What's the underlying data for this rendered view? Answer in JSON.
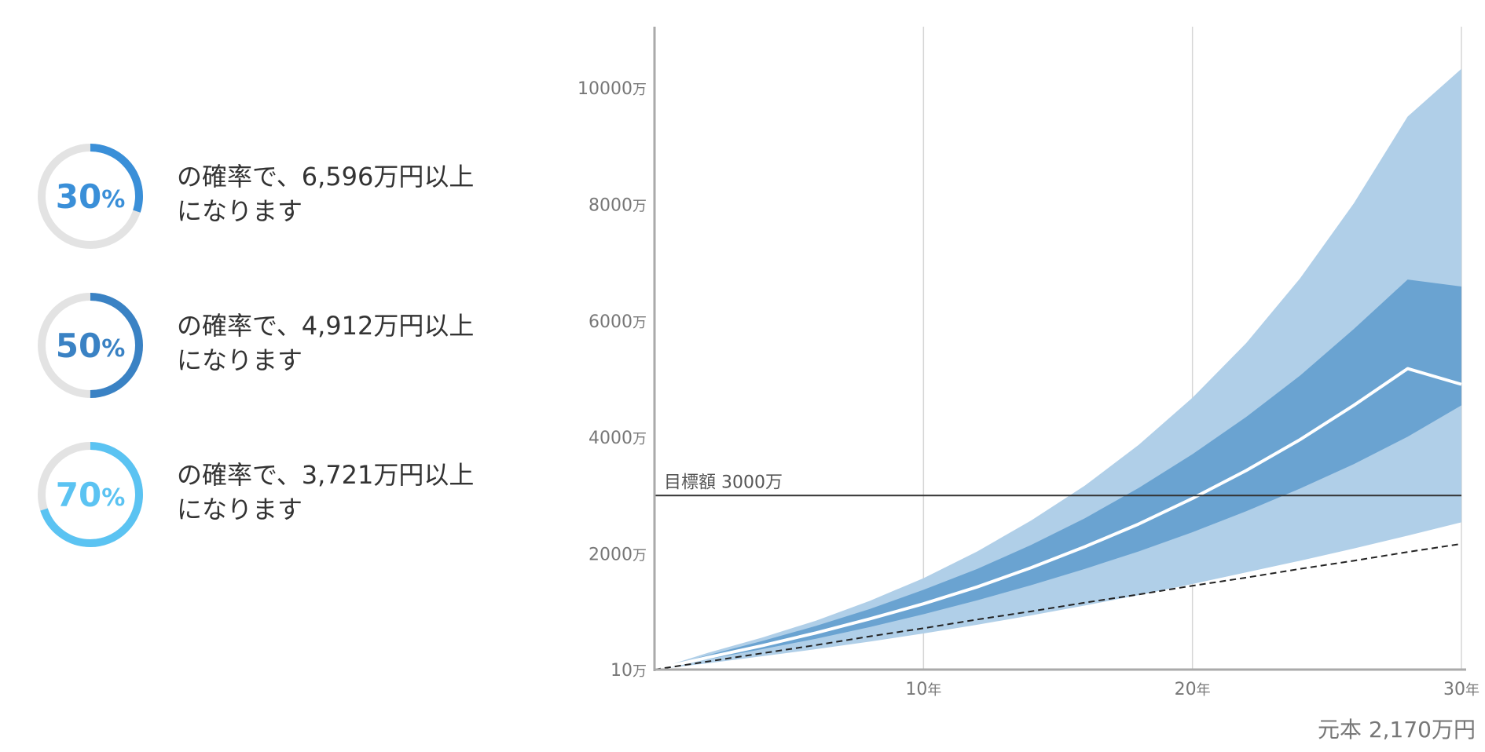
{
  "probabilities": [
    {
      "num": "30",
      "unit": "%",
      "fraction": 0.3,
      "color": "#3a8fd8",
      "line1": "の確率で、6,596万円以上",
      "line2": "になります"
    },
    {
      "num": "50",
      "unit": "%",
      "fraction": 0.5,
      "color": "#3a82c4",
      "line1": "の確率で、4,912万円以上",
      "line2": "になります"
    },
    {
      "num": "70",
      "unit": "%",
      "fraction": 0.7,
      "color": "#5bc3f2",
      "line1": "の確率で、3,721万円以上",
      "line2": "になります"
    }
  ],
  "chart_data": {
    "type": "area",
    "x": [
      0,
      2,
      4,
      6,
      8,
      10,
      12,
      14,
      16,
      18,
      20,
      22,
      24,
      26,
      28,
      30
    ],
    "x_ticks": [
      {
        "value": 10,
        "num": "10",
        "unit": "年"
      },
      {
        "value": 20,
        "num": "20",
        "unit": "年"
      },
      {
        "value": 30,
        "num": "30",
        "unit": "年"
      }
    ],
    "y_ticks": [
      {
        "value": 10,
        "num": "10",
        "unit": "万"
      },
      {
        "value": 2000,
        "num": "2000",
        "unit": "万"
      },
      {
        "value": 4000,
        "num": "4000",
        "unit": "万"
      },
      {
        "value": 6000,
        "num": "6000",
        "unit": "万"
      },
      {
        "value": 8000,
        "num": "8000",
        "unit": "万"
      },
      {
        "value": 10000,
        "num": "10000",
        "unit": "万"
      }
    ],
    "xlim": [
      0,
      30
    ],
    "ylim": [
      10,
      11000
    ],
    "grid": "vertical",
    "bands": [
      {
        "lower": [
          10,
          120,
          240,
          360,
          490,
          630,
          780,
          940,
          1110,
          1290,
          1480,
          1680,
          1880,
          2090,
          2310,
          2540
        ],
        "upper": [
          10,
          300,
          560,
          850,
          1190,
          1580,
          2040,
          2570,
          3170,
          3870,
          4680,
          5620,
          6730,
          8020,
          9510,
          10330
        ],
        "color": "#b0cfe8"
      },
      {
        "lower": [
          10,
          190,
          360,
          540,
          740,
          960,
          1200,
          1460,
          1740,
          2040,
          2370,
          2730,
          3120,
          3540,
          4010,
          4550
        ],
        "upper": [
          10,
          260,
          500,
          760,
          1050,
          1380,
          1740,
          2150,
          2610,
          3130,
          3710,
          4350,
          5060,
          5860,
          6710,
          6590
        ],
        "color": "#6aa3d1"
      }
    ],
    "series": [
      {
        "values": [
          10,
          220,
          420,
          640,
          880,
          1140,
          1430,
          1760,
          2120,
          2510,
          2950,
          3430,
          3960,
          4550,
          5180,
          4910
        ],
        "color": "#ffffff"
      },
      {
        "values": [
          10,
          150,
          290,
          430,
          580,
          720,
          870,
          1010,
          1160,
          1300,
          1450,
          1590,
          1740,
          1880,
          2030,
          2170
        ],
        "color": "#222222",
        "dashed": true
      }
    ],
    "target": {
      "value": 3000,
      "label": "目標額 3000万"
    }
  },
  "principal_label": "元本 2,170万円"
}
